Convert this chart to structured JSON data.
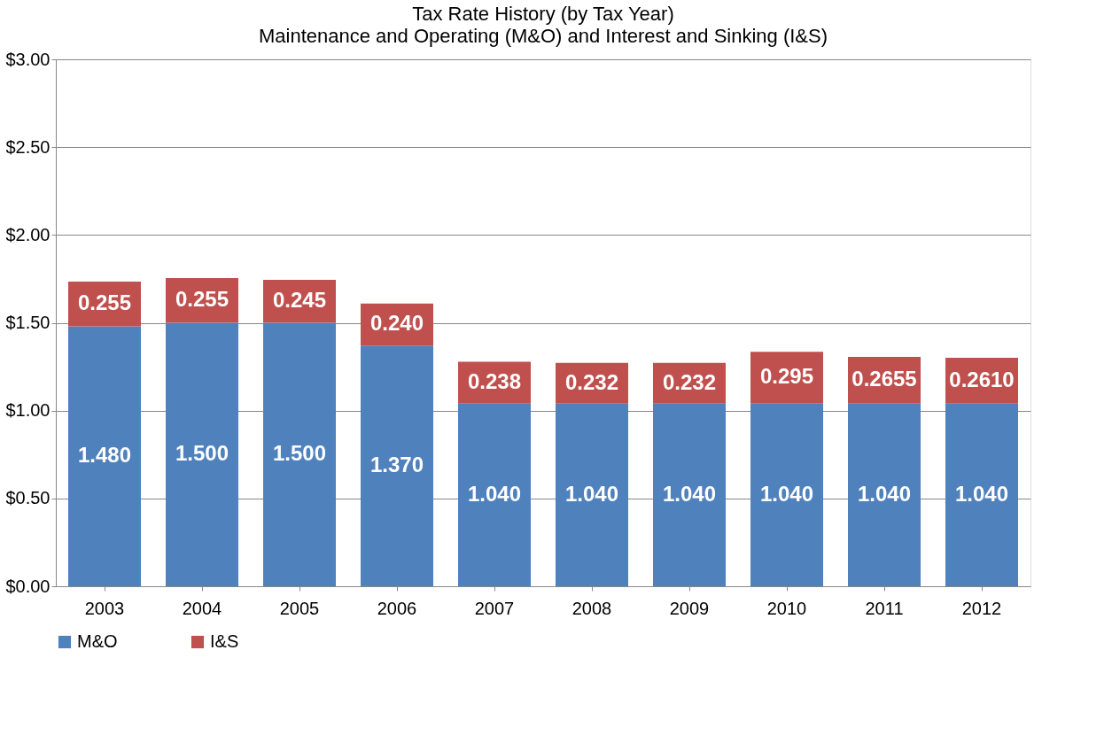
{
  "chart_data": {
    "type": "bar",
    "title": "Tax Rate History (by Tax Year)",
    "subtitle": "Maintenance and Operating (M&O) and Interest and Sinking (I&S)",
    "categories": [
      "2003",
      "2004",
      "2005",
      "2006",
      "2007",
      "2008",
      "2009",
      "2010",
      "2011",
      "2012"
    ],
    "stacked": true,
    "series": [
      {
        "name": "M&O",
        "color": "#4f81bd",
        "values": [
          1.48,
          1.5,
          1.5,
          1.37,
          1.04,
          1.04,
          1.04,
          1.04,
          1.04,
          1.04
        ],
        "value_labels": [
          "1.480",
          "1.500",
          "1.500",
          "1.370",
          "1.040",
          "1.040",
          "1.040",
          "1.040",
          "1.040",
          "1.040"
        ]
      },
      {
        "name": "I&S",
        "color": "#c0504d",
        "values": [
          0.255,
          0.255,
          0.245,
          0.24,
          0.238,
          0.232,
          0.232,
          0.295,
          0.2655,
          0.261
        ],
        "value_labels": [
          "0.255",
          "0.255",
          "0.245",
          "0.240",
          "0.238",
          "0.232",
          "0.232",
          "0.295",
          "0.2655",
          "0.2610"
        ]
      }
    ],
    "ylim": [
      0,
      3
    ],
    "yticks": [
      {
        "value": 0,
        "label": "$0.00"
      },
      {
        "value": 0.5,
        "label": "$0.50"
      },
      {
        "value": 1,
        "label": "$1.00"
      },
      {
        "value": 1.5,
        "label": "$1.50"
      },
      {
        "value": 2,
        "label": "$2.00"
      },
      {
        "value": 2.5,
        "label": "$2.50"
      },
      {
        "value": 3,
        "label": "$3.00"
      }
    ],
    "grid": "y",
    "legend": "bottom"
  }
}
